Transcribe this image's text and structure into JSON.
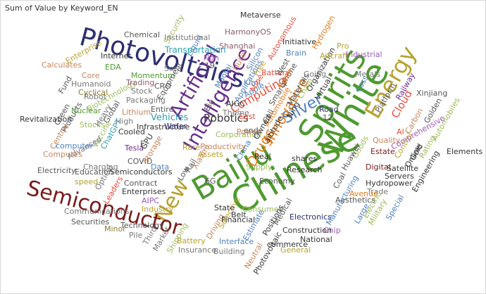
{
  "visual": {
    "title": "Sum of Value by Keyword_EN"
  },
  "wordcloud": {
    "words": [
      {
        "text": "Chinese",
        "color": "#4e9a2f",
        "rotate": -30
      },
      {
        "text": "White",
        "color": "#4e9a2f",
        "rotate": -60
      },
      {
        "text": "Spirits",
        "color": "#4e9a2f",
        "rotate": -60
      },
      {
        "text": "Baijiu",
        "color": "#4e9a2f",
        "rotate": -30
      },
      {
        "text": "Energy",
        "color": "#b8a12c",
        "rotate": -60
      },
      {
        "text": "New",
        "color": "#b8a12c",
        "rotate": -60
      },
      {
        "text": "Photovoltaics",
        "color": "#2c2e74",
        "rotate": 15
      },
      {
        "text": "Intelligence",
        "color": "#6a2d8c",
        "rotate": -60
      },
      {
        "text": "Semiconductor",
        "color": "#7a1a1a",
        "rotate": 15
      },
      {
        "text": "Artificial",
        "color": "#6a2d8c",
        "rotate": -60
      },
      {
        "text": "Silver",
        "color": "#4f81bd",
        "rotate": -30
      },
      {
        "text": "Drugs",
        "color": "#e17e1c",
        "rotate": -60
      },
      {
        "text": "Innovative",
        "color": "#e17e1c",
        "rotate": -60
      },
      {
        "text": "Robotics",
        "color": "#333333",
        "rotate": 0
      },
      {
        "text": "Computing",
        "color": "#e74c3c",
        "rotate": -30
      },
      {
        "text": "Cloud",
        "color": "#e74c3c",
        "rotate": -60
      },
      {
        "text": "Vehicles",
        "color": "#2e9fb3",
        "rotate": 0
      },
      {
        "text": "Metaverse",
        "color": "#333333",
        "rotate": 0
      },
      {
        "text": "HarmonyOS",
        "color": "#8a5b6b",
        "rotate": 0
      },
      {
        "text": "Shanghai",
        "color": "#8a5b6b",
        "rotate": 0
      },
      {
        "text": "Chemical",
        "color": "#555555",
        "rotate": 0
      },
      {
        "text": "Security",
        "color": "#9bbb59",
        "rotate": -60
      },
      {
        "text": "Liquid",
        "color": "#4f81bd",
        "rotate": -60
      },
      {
        "text": "Institutional",
        "color": "#777777",
        "rotate": 0
      },
      {
        "text": "Transportation",
        "color": "#2e9fb3",
        "rotate": 0
      },
      {
        "text": "Enterprise",
        "color": "#b8a12c",
        "rotate": -30
      },
      {
        "text": "Calculates",
        "color": "#c9845a",
        "rotate": 0
      },
      {
        "text": "Internet",
        "color": "#333333",
        "rotate": 0
      },
      {
        "text": "Core",
        "color": "#c9845a",
        "rotate": 0
      },
      {
        "text": "EDA",
        "color": "#4e9a2f",
        "rotate": 0
      },
      {
        "text": "Humanoid",
        "color": "#777777",
        "rotate": 0
      },
      {
        "text": "Cyclical",
        "color": "#8a7a2a",
        "rotate": 0
      },
      {
        "text": "Fund",
        "color": "#555555",
        "rotate": -60
      },
      {
        "text": "Biotechnology",
        "color": "#9bbb59",
        "rotate": -30
      },
      {
        "text": "Momentum",
        "color": "#4e9a2f",
        "rotate": 0
      },
      {
        "text": "Trading",
        "color": "#8a5b6b",
        "rotate": 0
      },
      {
        "text": "Stock",
        "color": "#777777",
        "rotate": 0
      },
      {
        "text": "Sora",
        "color": "#777777",
        "rotate": 0
      },
      {
        "text": "CRO",
        "color": "#555555",
        "rotate": 0
      },
      {
        "text": "Equipment",
        "color": "#555555",
        "rotate": -60
      },
      {
        "text": "Global",
        "color": "#555555",
        "rotate": -60
      },
      {
        "text": "Packaging",
        "color": "#777777",
        "rotate": 0
      },
      {
        "text": "Green",
        "color": "#555555",
        "rotate": -60
      },
      {
        "text": "Products",
        "color": "#555555",
        "rotate": -60
      },
      {
        "text": "Robot",
        "color": "#777777",
        "rotate": 0
      },
      {
        "text": "Revitalization",
        "color": "#333333",
        "rotate": 0
      },
      {
        "text": "Nuclear",
        "color": "#4e9a2f",
        "rotate": 0
      },
      {
        "text": "Central",
        "color": "#c9845a",
        "rotate": -60
      },
      {
        "text": "Stocks",
        "color": "#9bbb59",
        "rotate": 0
      },
      {
        "text": "Heavy",
        "color": "#777777",
        "rotate": -60
      },
      {
        "text": "Lithium",
        "color": "#c9845a",
        "rotate": 0
      },
      {
        "text": "High",
        "color": "#777777",
        "rotate": 0
      },
      {
        "text": "Cooled",
        "color": "#333333",
        "rotate": 0
      },
      {
        "text": "Infrastructure",
        "color": "#333333",
        "rotate": 0
      },
      {
        "text": "Wafer",
        "color": "#2c2e74",
        "rotate": 0
      },
      {
        "text": "Entire",
        "color": "#555555",
        "rotate": 0
      },
      {
        "text": "ChatGPT",
        "color": "#2e9fb3",
        "rotate": -60
      },
      {
        "text": "Vaccine",
        "color": "#9bbb59",
        "rotate": -60
      },
      {
        "text": "computer",
        "color": "#4f81bd",
        "rotate": 0
      },
      {
        "text": "Advanced",
        "color": "#777777",
        "rotate": -30
      },
      {
        "text": "Tesla",
        "color": "#6a2d8c",
        "rotate": 0
      },
      {
        "text": "GPU",
        "color": "#333333",
        "rotate": -60
      },
      {
        "text": "Computes",
        "color": "#c9845a",
        "rotate": 0
      },
      {
        "text": "Charging",
        "color": "#777777",
        "rotate": 0
      },
      {
        "text": "COVID",
        "color": "#555555",
        "rotate": 0
      },
      {
        "text": "Storage",
        "color": "#c9845a",
        "rotate": -60
      },
      {
        "text": "Data",
        "color": "#4f81bd",
        "rotate": 0
      },
      {
        "text": "Electricity",
        "color": "#555555",
        "rotate": 0
      },
      {
        "text": "Education",
        "color": "#555555",
        "rotate": 0
      },
      {
        "text": "speed",
        "color": "#b8a12c",
        "rotate": 0
      },
      {
        "text": "Optical",
        "color": "#777777",
        "rotate": -60
      },
      {
        "text": "Leaders",
        "color": "#e74c3c",
        "rotate": -60
      },
      {
        "text": "Semiconductors",
        "color": "#333333",
        "rotate": 0
      },
      {
        "text": "Contract",
        "color": "#555555",
        "rotate": 0
      },
      {
        "text": "Enterprises",
        "color": "#333333",
        "rotate": 0
      },
      {
        "text": "AIPC",
        "color": "#9b59b6",
        "rotate": 0
      },
      {
        "text": "Industry",
        "color": "#b8a12c",
        "rotate": 0
      },
      {
        "text": "Communications",
        "color": "#777777",
        "rotate": 0
      },
      {
        "text": "Securities",
        "color": "#555555",
        "rotate": 0
      },
      {
        "text": "Minor",
        "color": "#8a7a2a",
        "rotate": 0
      },
      {
        "text": "Technology",
        "color": "#555555",
        "rotate": 0
      },
      {
        "text": "Pile",
        "color": "#777777",
        "rotate": 0
      },
      {
        "text": "Third",
        "color": "#777777",
        "rotate": -60
      },
      {
        "text": "Market",
        "color": "#777777",
        "rotate": -60
      },
      {
        "text": "Shipping",
        "color": "#9bbb59",
        "rotate": -60
      },
      {
        "text": "Battery",
        "color": "#b8a12c",
        "rotate": 0
      },
      {
        "text": "Insurance",
        "color": "#777777",
        "rotate": 0
      },
      {
        "text": "Building",
        "color": "#777777",
        "rotate": 0
      },
      {
        "text": "Driving",
        "color": "#c9845a",
        "rotate": -60
      },
      {
        "text": "Selective",
        "color": "#b8a12c",
        "rotate": -60
      },
      {
        "text": "Financial",
        "color": "#333333",
        "rotate": 0
      },
      {
        "text": "State",
        "color": "#333333",
        "rotate": 0
      },
      {
        "text": "Belt",
        "color": "#333333",
        "rotate": 0
      },
      {
        "text": "6G",
        "color": "#555555",
        "rotate": 0
      },
      {
        "text": "Low",
        "color": "#555555",
        "rotate": -60
      },
      {
        "text": "Rail",
        "color": "#555555",
        "rotate": -60
      },
      {
        "text": "Xiaomi",
        "color": "#c9845a",
        "rotate": -60
      },
      {
        "text": "Rare",
        "color": "#b8a12c",
        "rotate": 0
      },
      {
        "text": "Assets",
        "color": "#b8a12c",
        "rotate": 0
      },
      {
        "text": "Productivity",
        "color": "#c9845a",
        "rotate": 0
      },
      {
        "text": "Corporation",
        "color": "#9bbb59",
        "rotate": 0
      },
      {
        "text": "Power",
        "color": "#c9845a",
        "rotate": 0
      },
      {
        "text": "AIGC",
        "color": "#333333",
        "rotate": 0
      },
      {
        "text": "Theme",
        "color": "#777777",
        "rotate": 0
      },
      {
        "text": "Big",
        "color": "#555555",
        "rotate": -60
      },
      {
        "text": "Maotai",
        "color": "#4f81bd",
        "rotate": -60
      },
      {
        "text": "Applications",
        "color": "#4f81bd",
        "rotate": -60
      },
      {
        "text": "Apple",
        "color": "#4f81bd",
        "rotate": -30
      },
      {
        "text": "Kimi",
        "color": "#4f81bd",
        "rotate": 0
      },
      {
        "text": "Huijin",
        "color": "#c9845a",
        "rotate": -60
      },
      {
        "text": "Silicon",
        "color": "#4f81bd",
        "rotate": -60
      },
      {
        "text": "Free",
        "color": "#b8a12c",
        "rotate": -60
      },
      {
        "text": "Autonomous",
        "color": "#e74c3c",
        "rotate": -60
      },
      {
        "text": "Battery2",
        "color": "#e74c3c",
        "rotate": 0
      },
      {
        "text": "Mine",
        "color": "#e74c3c",
        "rotate": -60
      },
      {
        "text": "East",
        "color": "#e74c3c",
        "rotate": 0
      },
      {
        "text": "end",
        "color": "#555555",
        "rotate": 0
      },
      {
        "text": "Automobile",
        "color": "#e17e1c",
        "rotate": -60
      },
      {
        "text": "Smartphone",
        "color": "#555555",
        "rotate": -60
      },
      {
        "text": "West",
        "color": "#555555",
        "rotate": -60
      },
      {
        "text": "Brain",
        "color": "#4f81bd",
        "rotate": 0
      },
      {
        "text": "Earth",
        "color": "#e17e1c",
        "rotate": -60
      },
      {
        "text": "Materials",
        "color": "#555555",
        "rotate": -60
      },
      {
        "text": "Going",
        "color": "#777777",
        "rotate": 0
      },
      {
        "text": "Organization",
        "color": "#333333",
        "rotate": -60
      },
      {
        "text": "Virtual",
        "color": "#333333",
        "rotate": -60
      },
      {
        "text": "Chain",
        "color": "#9bbb59",
        "rotate": -60
      },
      {
        "text": "Ning",
        "color": "#333333",
        "rotate": -60
      },
      {
        "text": "Initiative",
        "color": "#333333",
        "rotate": 0
      },
      {
        "text": "Hydrogen",
        "color": "#e17e1c",
        "rotate": -60
      },
      {
        "text": "Aircraft",
        "color": "#b8a12c",
        "rotate": 0
      },
      {
        "text": "Pro",
        "color": "#b8a12c",
        "rotate": 0
      },
      {
        "text": "Industrial",
        "color": "#9b59b6",
        "rotate": 0
      },
      {
        "text": "Metals",
        "color": "#777777",
        "rotate": 0
      },
      {
        "text": "Loss",
        "color": "#4f81bd",
        "rotate": -60
      },
      {
        "text": "Platform",
        "color": "#555555",
        "rotate": -60
      },
      {
        "text": "Railway",
        "color": "#6a2d8c",
        "rotate": -60
      },
      {
        "text": "Xinjiang",
        "color": "#555555",
        "rotate": 0
      },
      {
        "text": "Cell",
        "color": "#555555",
        "rotate": -60
      },
      {
        "text": "Owned",
        "color": "#333333",
        "rotate": -60
      },
      {
        "text": "Road",
        "color": "#2c2e74",
        "rotate": 0
      },
      {
        "text": "12",
        "color": "#555555",
        "rotate": 0
      },
      {
        "text": "Real",
        "color": "#333333",
        "rotate": 0
      },
      {
        "text": "altitude",
        "color": "#333333",
        "rotate": -60
      },
      {
        "text": "China",
        "color": "#4f81bd",
        "rotate": -60
      },
      {
        "text": "Supply",
        "color": "#9bbb59",
        "rotate": 0
      },
      {
        "text": "shares",
        "color": "#333333",
        "rotate": 0
      },
      {
        "text": "Research",
        "color": "#333333",
        "rotate": 0
      },
      {
        "text": "Economy",
        "color": "#555555",
        "rotate": 0
      },
      {
        "text": "AI",
        "color": "#e74c3c",
        "rotate": 0
      },
      {
        "text": "Quality",
        "color": "#c9845a",
        "rotate": 0
      },
      {
        "text": "Comprehensive",
        "color": "#9b59b6",
        "rotate": -30
      },
      {
        "text": "Carbon",
        "color": "#c9845a",
        "rotate": -60
      },
      {
        "text": "Golden",
        "color": "#555555",
        "rotate": -60
      },
      {
        "text": "Estate",
        "color": "#7a1a1a",
        "rotate": 0
      },
      {
        "text": "Digital",
        "color": "#7a1a1a",
        "rotate": 0
      },
      {
        "text": "Goods",
        "color": "#9bbb59",
        "rotate": -60
      },
      {
        "text": "Control",
        "color": "#b8a12c",
        "rotate": -60
      },
      {
        "text": "Online",
        "color": "#333333",
        "rotate": -60
      },
      {
        "text": "Gold",
        "color": "#333333",
        "rotate": -60
      },
      {
        "text": "Rating",
        "color": "#9bbb59",
        "rotate": -60
      },
      {
        "text": "Automobiles",
        "color": "#9bbb59",
        "rotate": -60
      },
      {
        "text": "Elements",
        "color": "#333333",
        "rotate": 0
      },
      {
        "text": "Huawei",
        "color": "#555555",
        "rotate": -60
      },
      {
        "text": "Hydropower",
        "color": "#333333",
        "rotate": 0
      },
      {
        "text": "Servers",
        "color": "#333333",
        "rotate": 0
      },
      {
        "text": "Satellite",
        "color": "#333333",
        "rotate": 0
      },
      {
        "text": "Coal",
        "color": "#555555",
        "rotate": -60
      },
      {
        "text": "Trade",
        "color": "#777777",
        "rotate": 0
      },
      {
        "text": "Engineering",
        "color": "#333333",
        "rotate": -60
      },
      {
        "text": "Aesthetics",
        "color": "#555555",
        "rotate": 0
      },
      {
        "text": "Avenue",
        "color": "#e17e1c",
        "rotate": 0
      },
      {
        "text": "Consumer",
        "color": "#9bbb59",
        "rotate": 0
      },
      {
        "text": "Estimate",
        "color": "#4f81bd",
        "rotate": -60
      },
      {
        "text": "Positions",
        "color": "#333333",
        "rotate": -60
      },
      {
        "text": "Medical",
        "color": "#555555",
        "rotate": -60
      },
      {
        "text": "Electronics",
        "color": "#2c2e74",
        "rotate": 0
      },
      {
        "text": "Chip",
        "color": "#9b59b6",
        "rotate": 0
      },
      {
        "text": "Construction",
        "color": "#333333",
        "rotate": 0
      },
      {
        "text": "Manufacturing",
        "color": "#4f81bd",
        "rotate": -60
      },
      {
        "text": "Large",
        "color": "#4f81bd",
        "rotate": -60
      },
      {
        "text": "Electric",
        "color": "#9bbb59",
        "rotate": -60
      },
      {
        "text": "Military",
        "color": "#9bbb59",
        "rotate": -60
      },
      {
        "text": "Special",
        "color": "#4f81bd",
        "rotate": -60
      },
      {
        "text": "Interface",
        "color": "#4f81bd",
        "rotate": 0
      },
      {
        "text": "commerce",
        "color": "#333333",
        "rotate": 0
      },
      {
        "text": "National",
        "color": "#333333",
        "rotate": 0
      },
      {
        "text": "General",
        "color": "#b8a12c",
        "rotate": 0
      },
      {
        "text": "Photovoltaic",
        "color": "#333333",
        "rotate": -60
      },
      {
        "text": "Neutral",
        "color": "#c9845a",
        "rotate": -60
      },
      {
        "text": "19",
        "color": "#555555",
        "rotate": 0
      },
      {
        "text": "Non",
        "color": "#9b59b6",
        "rotate": 0
      },
      {
        "text": "E",
        "color": "#555555",
        "rotate": 0
      }
    ]
  }
}
